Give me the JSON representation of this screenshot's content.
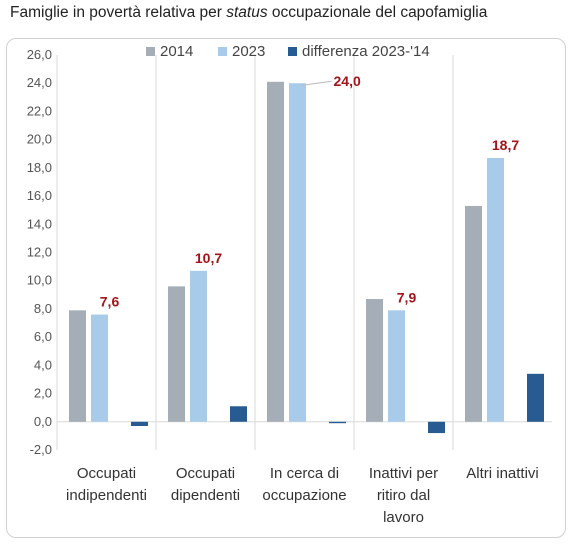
{
  "title_parts": {
    "pre": "Famiglie in povertà relativa per ",
    "em": "status",
    "post": " occupazionale del capofamiglia"
  },
  "colors": {
    "s2014": "#a5adb6",
    "s2023": "#a9cbea",
    "sdiff": "#285b91",
    "label": "#a3141a",
    "grid": "#d9d9d9"
  },
  "chart_data": {
    "type": "bar",
    "title": "Famiglie in povertà relativa per status occupazionale del capofamiglia",
    "categories": [
      [
        "Occupati",
        "indipendenti"
      ],
      [
        "Occupati",
        "dipendenti"
      ],
      [
        "In cerca di",
        "occupazione"
      ],
      [
        "Inattivi per",
        "ritiro dal",
        "lavoro"
      ],
      [
        "Altri inattivi"
      ]
    ],
    "series": [
      {
        "name": "2014",
        "values": [
          7.9,
          9.6,
          24.1,
          8.7,
          15.3
        ]
      },
      {
        "name": "2023",
        "values": [
          7.6,
          10.7,
          24.0,
          7.9,
          18.7
        ]
      },
      {
        "name": "differenza 2023-'14",
        "values": [
          -0.3,
          1.1,
          -0.1,
          -0.8,
          3.4
        ]
      }
    ],
    "data_labels": [
      "7,6",
      "10,7",
      "24,0",
      "7,9",
      "18,7"
    ],
    "y_ticks": [
      "-2,0",
      "0,0",
      "2,0",
      "4,0",
      "6,0",
      "8,0",
      "10,0",
      "12,0",
      "14,0",
      "16,0",
      "18,0",
      "20,0",
      "22,0",
      "24,0",
      "26,0"
    ],
    "ylim": [
      -2,
      26
    ],
    "legend_position": "top"
  }
}
